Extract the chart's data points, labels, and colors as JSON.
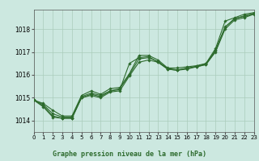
{
  "bg_color": "#cce8e0",
  "grid_color": "#aaccbb",
  "line_color": "#2d6b2d",
  "marker_color": "#2d6b2d",
  "title": "Graphe pression niveau de la mer (hPa)",
  "xlim": [
    0,
    23
  ],
  "ylim": [
    1013.5,
    1018.85
  ],
  "yticks": [
    1014,
    1015,
    1016,
    1017,
    1018
  ],
  "xticks": [
    0,
    1,
    2,
    3,
    4,
    5,
    6,
    7,
    8,
    9,
    10,
    11,
    12,
    13,
    14,
    15,
    16,
    17,
    18,
    19,
    20,
    21,
    22,
    23
  ],
  "series": [
    [
      1014.9,
      1014.75,
      1014.45,
      1014.2,
      1014.2,
      1015.1,
      1015.3,
      1015.15,
      1015.4,
      1015.45,
      1016.05,
      1016.85,
      1016.85,
      1016.65,
      1016.3,
      1016.3,
      1016.35,
      1016.4,
      1016.5,
      1017.15,
      1018.35,
      1018.5,
      1018.65,
      1018.72
    ],
    [
      1014.9,
      1014.65,
      1014.2,
      1014.1,
      1014.1,
      1015.0,
      1015.15,
      1015.05,
      1015.3,
      1015.35,
      1016.5,
      1016.75,
      1016.8,
      1016.55,
      1016.25,
      1016.2,
      1016.3,
      1016.35,
      1016.45,
      1017.05,
      1018.1,
      1018.45,
      1018.58,
      1018.68
    ],
    [
      1014.9,
      1014.6,
      1014.15,
      1014.1,
      1014.1,
      1015.0,
      1015.1,
      1015.0,
      1015.25,
      1015.3,
      1015.95,
      1016.55,
      1016.65,
      1016.55,
      1016.25,
      1016.2,
      1016.25,
      1016.35,
      1016.45,
      1017.0,
      1018.0,
      1018.4,
      1018.5,
      1018.65
    ],
    [
      1014.9,
      1014.7,
      1014.3,
      1014.15,
      1014.15,
      1015.05,
      1015.2,
      1015.1,
      1015.3,
      1015.4,
      1016.0,
      1016.7,
      1016.75,
      1016.58,
      1016.28,
      1016.22,
      1016.28,
      1016.38,
      1016.48,
      1017.08,
      1018.08,
      1018.47,
      1018.55,
      1018.68
    ]
  ]
}
